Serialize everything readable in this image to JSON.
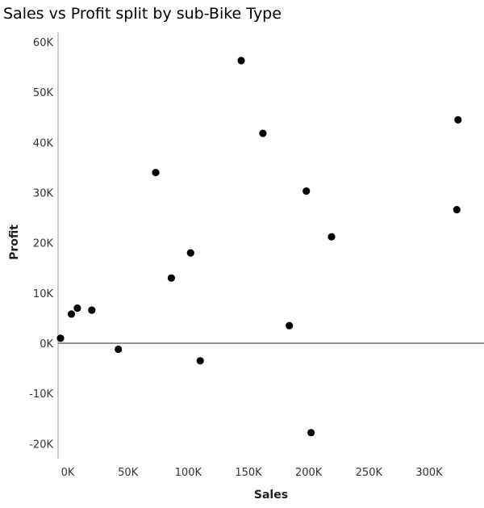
{
  "chart_data": {
    "type": "scatter",
    "title": "Sales vs Profit split by sub-Bike Type",
    "xlabel": "Sales",
    "ylabel": "Profit",
    "xlim": [
      -3000,
      339000
    ],
    "ylim": [
      -22000,
      62000
    ],
    "x_ticks": [
      0,
      50000,
      100000,
      150000,
      200000,
      250000,
      300000
    ],
    "x_tick_labels": [
      "0K",
      "50K",
      "100K",
      "150K",
      "200K",
      "250K",
      "300K"
    ],
    "y_ticks": [
      60000,
      50000,
      40000,
      30000,
      20000,
      10000,
      0,
      -10000,
      -20000
    ],
    "y_tick_labels": [
      "60K",
      "50K",
      "40K",
      "30K",
      "20K",
      "10K",
      "0K",
      "-10K",
      "-20K"
    ],
    "grid": false,
    "zero_line": true,
    "marker_color": "#000000",
    "series": [
      {
        "x": [
          -2000,
          7000,
          12000,
          24000,
          46000,
          77000,
          90000,
          106000,
          114000,
          148000,
          166000,
          188000,
          202000,
          206000,
          223000,
          327000,
          328000
        ],
        "y": [
          1000,
          5800,
          7000,
          6600,
          -1200,
          34000,
          13000,
          18000,
          -3500,
          56300,
          41800,
          3500,
          30300,
          -17800,
          21200,
          26600,
          44500
        ]
      }
    ]
  }
}
